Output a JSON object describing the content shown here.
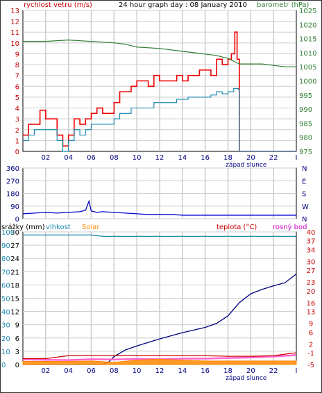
{
  "chart_data": [
    {
      "type": "line",
      "title": "24 hour graph day : 08 January 2010",
      "left_axis_label": "rychlost vetru (m/s)",
      "right_axis_label": "barometr (hPa)",
      "left_ticks": [
        "0",
        "1",
        "2",
        "3",
        "4",
        "5",
        "6",
        "7",
        "8",
        "9",
        "10",
        "11",
        "12",
        "13"
      ],
      "right_ticks": [
        "975",
        "980",
        "985",
        "990",
        "995",
        "1000",
        "1005",
        "1010",
        "1015",
        "1020",
        "1025"
      ],
      "x_ticks": [
        "02",
        "04",
        "06",
        "08",
        "10",
        "12",
        "14",
        "16",
        "18",
        "20",
        "22",
        "I"
      ],
      "annotation": "západ slunce",
      "ylim_left": [
        0,
        13
      ],
      "ylim_right": [
        975,
        1025
      ],
      "series": [
        {
          "color": "#ee0000",
          "x": [
            0,
            0.5,
            1,
            1.5,
            2,
            2.5,
            3,
            3.5,
            4,
            4.5,
            5,
            5.5,
            6,
            6.5,
            7,
            7.5,
            8,
            8.5,
            9,
            9.5,
            10,
            10.5,
            11,
            11.5,
            12,
            12.5,
            13,
            13.5,
            14,
            14.5,
            15,
            15.5,
            16,
            16.5,
            17,
            17.5,
            18,
            18.3,
            18.6,
            18.8,
            19,
            20,
            21,
            22,
            23,
            24
          ],
          "values": [
            1.5,
            2.5,
            2.5,
            3.8,
            3,
            3,
            1.5,
            0.5,
            1.5,
            3,
            2.5,
            3,
            3.5,
            4,
            3.5,
            3.5,
            4.5,
            5.5,
            5.5,
            6,
            6.5,
            6.5,
            6,
            7,
            6.5,
            6.5,
            6.5,
            7,
            6.5,
            7,
            7,
            7.5,
            7.5,
            7,
            8.5,
            8,
            8.5,
            9,
            11,
            8.5,
            0,
            0,
            0,
            0,
            0,
            0
          ]
        },
        {
          "color": "#1e8ab0",
          "x": [
            0,
            0.5,
            1,
            1.5,
            2,
            2.5,
            3,
            3.5,
            4,
            4.5,
            5,
            5.5,
            6,
            6.5,
            7,
            7.5,
            8,
            8.5,
            9,
            9.5,
            10,
            10.5,
            11,
            11.5,
            12,
            12.5,
            13,
            13.5,
            14,
            14.5,
            15,
            15.5,
            16,
            16.5,
            17,
            17.5,
            18,
            18.5,
            18.9,
            19,
            20,
            21,
            22,
            23,
            24
          ],
          "values": [
            1,
            1.5,
            2,
            2,
            2,
            2,
            1,
            0,
            1,
            2,
            1.5,
            2,
            2.5,
            2.5,
            2.5,
            2.5,
            3,
            3.5,
            3.5,
            4,
            4,
            4,
            4,
            4.5,
            4.5,
            4.5,
            4.5,
            4.8,
            4.8,
            5,
            5,
            5,
            5,
            5.2,
            5.5,
            5.3,
            5.5,
            5.8,
            5.7,
            0,
            0,
            0,
            0,
            0,
            0
          ]
        },
        {
          "color": "#2e7d32",
          "axis": "right",
          "x": [
            0,
            2,
            4,
            6,
            8,
            9,
            10,
            12,
            14,
            15,
            16,
            17,
            18,
            19,
            20,
            21,
            22,
            23,
            24
          ],
          "values": [
            1014,
            1014,
            1014.5,
            1014,
            1013.5,
            1013,
            1012,
            1011.5,
            1010.5,
            1010,
            1009.5,
            1009,
            1008,
            1006,
            1006,
            1006,
            1005.5,
            1005,
            1005
          ]
        }
      ]
    },
    {
      "type": "line",
      "left_ticks": [
        "0",
        "90",
        "180",
        "270",
        "360"
      ],
      "right_ticks": [
        "N",
        "E",
        "S",
        "W",
        "N"
      ],
      "ylim": [
        0,
        360
      ],
      "series": [
        {
          "color": "#0000cc",
          "x": [
            0,
            1,
            2,
            3,
            4,
            5,
            5.5,
            5.8,
            6,
            6.5,
            7,
            8,
            9,
            10,
            11,
            12,
            13,
            14,
            15,
            16,
            17,
            18,
            19,
            20,
            21,
            22,
            23,
            24
          ],
          "values": [
            35,
            40,
            45,
            40,
            45,
            50,
            60,
            125,
            55,
            45,
            50,
            45,
            40,
            35,
            30,
            30,
            30,
            25,
            25,
            25,
            25,
            25,
            25,
            25,
            25,
            25,
            25,
            25
          ]
        }
      ]
    },
    {
      "type": "line",
      "left_axis_label": "srážky (mm)",
      "labels": [
        "vlhkost",
        "Solar",
        "teplota (°C)",
        "rosný bod"
      ],
      "left_ticks_a": [
        "0",
        "3",
        "6",
        "9",
        "12",
        "15",
        "18",
        "21",
        "24",
        "27",
        "30"
      ],
      "left_ticks_b": [
        "0",
        "10",
        "20",
        "30",
        "40",
        "50",
        "60",
        "70",
        "80",
        "90",
        "100"
      ],
      "right_ticks": [
        "-5",
        "-1",
        "2",
        "6",
        "9",
        "13",
        "16",
        "20",
        "23",
        "27",
        "30",
        "34",
        "37",
        "40"
      ],
      "x_ticks": [
        "02",
        "04",
        "06",
        "08",
        "10",
        "12",
        "14",
        "16",
        "18",
        "20",
        "22",
        "I"
      ],
      "annotation": "západ slunce",
      "ylim_left": [
        0,
        30
      ],
      "ylim_right": [
        -5,
        40
      ],
      "series": [
        {
          "color": "#1e8ab0",
          "x": [
            0,
            6,
            7,
            24
          ],
          "values": [
            29.3,
            29.3,
            29.0,
            29.0
          ]
        },
        {
          "color": "#000080",
          "x": [
            0,
            7,
            7.5,
            8,
            9,
            10,
            11,
            12,
            13,
            14,
            15,
            16,
            17,
            18,
            19,
            20,
            21,
            22,
            23,
            23.5,
            24
          ],
          "values": [
            0,
            0,
            0.5,
            1.8,
            3.3,
            4.2,
            5,
            5.8,
            6.5,
            7.2,
            7.8,
            8.4,
            9.3,
            11,
            14,
            16,
            17,
            17.8,
            18.5,
            19.5,
            20.5
          ]
        },
        {
          "color": "#ff66cc",
          "axis": "right",
          "x": [
            0,
            4,
            6,
            8,
            10,
            12,
            14,
            16,
            18,
            20,
            22,
            24
          ],
          "values": [
            -3.3,
            -3.5,
            -3.2,
            -3.3,
            -3.1,
            -3.2,
            -3.0,
            -3.0,
            -2.8,
            -2.6,
            -2.3,
            -1.8
          ]
        },
        {
          "color": "#cc0000",
          "axis": "right",
          "x": [
            0,
            2,
            4,
            6,
            8,
            10,
            12,
            14,
            16,
            18,
            20,
            22,
            24
          ],
          "values": [
            -3,
            -3,
            -2,
            -2,
            -2,
            -2,
            -2,
            -2,
            -2,
            -2.2,
            -2.2,
            -2,
            -1
          ]
        },
        {
          "color": "#ff8800",
          "x": [
            0,
            4,
            6,
            8,
            10,
            12,
            14,
            16,
            18,
            20,
            24
          ],
          "values": [
            0.7,
            0.7,
            0.8,
            0.5,
            1.0,
            1.2,
            1.0,
            0.8,
            0.8,
            0.8,
            0.8
          ]
        }
      ]
    }
  ],
  "colors": {
    "grid": "#cccccc",
    "wind": "#ee0000",
    "humidity": "#1e8ab0",
    "pressure": "#2e7d32",
    "direction": "#0000cc",
    "rain": "#000080",
    "temperature": "#cc0000",
    "dewpoint": "#cc00cc",
    "solar": "#ff8800"
  }
}
